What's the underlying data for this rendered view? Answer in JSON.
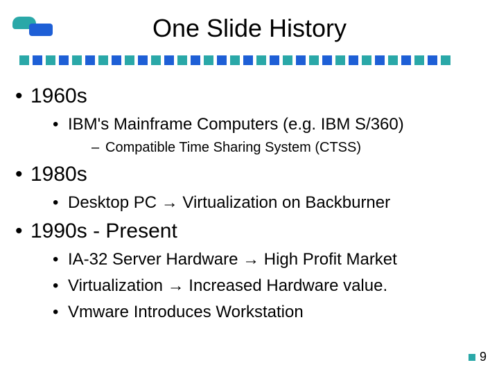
{
  "title": "One Slide History",
  "divider": {
    "count": 33,
    "colors": [
      "#2aa8a8",
      "#1e5fd6"
    ],
    "square_size": 14
  },
  "logo": {
    "color1": "#2aa8a8",
    "color2": "#1e5fd6"
  },
  "bullets": [
    {
      "level": 1,
      "text": "1960s"
    },
    {
      "level": 2,
      "text": "IBM's Mainframe Computers (e.g. IBM S/360)"
    },
    {
      "level": 3,
      "text": "Compatible Time Sharing System (CTSS)"
    },
    {
      "level": 1,
      "text": "1980s"
    },
    {
      "level": 2,
      "text": "Desktop PC → Virtualization on Backburner",
      "arrow": true
    },
    {
      "level": 1,
      "text": "1990s - Present"
    },
    {
      "level": 2,
      "text": "IA-32 Server Hardware → High Profit Market",
      "arrow": true
    },
    {
      "level": 2,
      "text": "Virtualization → Increased Hardware value.",
      "arrow": true
    },
    {
      "level": 2,
      "text": "Vmware Introduces Workstation"
    }
  ],
  "footer": {
    "page_number": "9",
    "square_color": "#2aa8a8"
  },
  "fonts": {
    "title_size": 36,
    "l1_size": 30,
    "l2_size": 24,
    "l3_size": 20
  },
  "background_color": "#ffffff",
  "text_color": "#000000"
}
